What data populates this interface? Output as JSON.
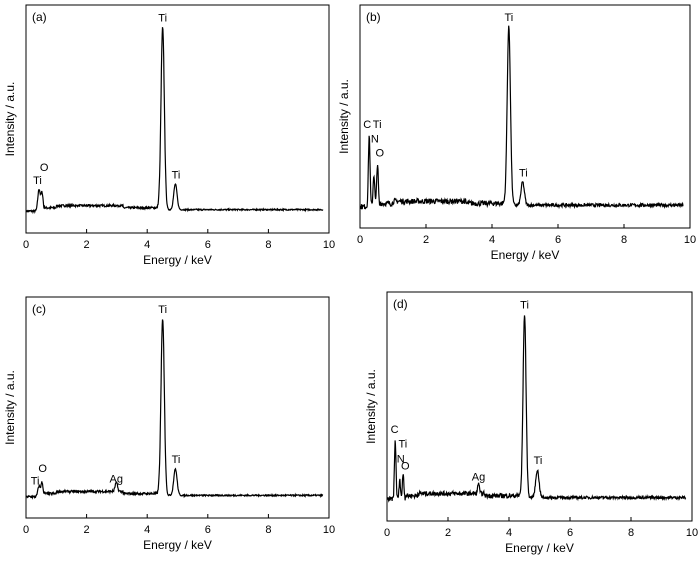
{
  "chart_data": [
    {
      "type": "line",
      "tag": "(a)",
      "xlabel": "Energy / keV",
      "ylabel": "Intensity / a.u.",
      "xlim": [
        0,
        10
      ],
      "ylim": [
        -12,
        113
      ],
      "xticks": [
        0,
        2,
        4,
        6,
        8,
        10
      ],
      "noise": 1.2,
      "peaks": [
        {
          "e": 0.43,
          "h": 12,
          "w": 0.04
        },
        {
          "e": 0.53,
          "h": 10,
          "w": 0.035
        },
        {
          "e": 4.51,
          "h": 100,
          "w": 0.055
        },
        {
          "e": 4.93,
          "h": 14,
          "w": 0.055
        }
      ],
      "labels": [
        {
          "text": "Ti",
          "e": 0.38,
          "i": 15
        },
        {
          "text": "O",
          "e": 0.6,
          "i": 22
        },
        {
          "text": "Ti",
          "e": 4.51,
          "i": 104
        },
        {
          "text": "Ti",
          "e": 4.95,
          "i": 18
        }
      ]
    },
    {
      "type": "line",
      "tag": "(b)",
      "xlabel": "Energy / keV",
      "ylabel": "Intensity / a.u.",
      "xlim": [
        0,
        10
      ],
      "ylim": [
        -12,
        113
      ],
      "xticks": [
        0,
        2,
        4,
        6,
        8,
        10
      ],
      "noise": 3,
      "peaks": [
        {
          "e": 0.28,
          "h": 40,
          "w": 0.025
        },
        {
          "e": 0.42,
          "h": 18,
          "w": 0.025
        },
        {
          "e": 0.53,
          "h": 24,
          "w": 0.025
        },
        {
          "e": 4.51,
          "h": 100,
          "w": 0.05
        },
        {
          "e": 4.93,
          "h": 13,
          "w": 0.05
        }
      ],
      "labels": [
        {
          "text": "C",
          "e": 0.22,
          "i": 44
        },
        {
          "text": "Ti",
          "e": 0.52,
          "i": 44
        },
        {
          "text": "N",
          "e": 0.45,
          "i": 36
        },
        {
          "text": "O",
          "e": 0.6,
          "i": 28
        },
        {
          "text": "Ti",
          "e": 4.51,
          "i": 104
        },
        {
          "text": "Ti",
          "e": 4.95,
          "i": 17
        }
      ]
    },
    {
      "type": "line",
      "tag": "(c)",
      "xlabel": "Energy / keV",
      "ylabel": "Intensity / a.u.",
      "xlim": [
        0,
        10
      ],
      "ylim": [
        -12,
        113
      ],
      "xticks": [
        0,
        2,
        4,
        6,
        8,
        10
      ],
      "noise": 1.3,
      "peaks": [
        {
          "e": 0.43,
          "h": 6,
          "w": 0.04
        },
        {
          "e": 0.53,
          "h": 8,
          "w": 0.035
        },
        {
          "e": 2.98,
          "h": 5,
          "w": 0.04
        },
        {
          "e": 4.51,
          "h": 100,
          "w": 0.055
        },
        {
          "e": 4.93,
          "h": 15,
          "w": 0.055
        }
      ],
      "labels": [
        {
          "text": "Ti",
          "e": 0.3,
          "i": 7
        },
        {
          "text": "O",
          "e": 0.55,
          "i": 14
        },
        {
          "text": "Ag",
          "e": 2.98,
          "i": 8
        },
        {
          "text": "Ti",
          "e": 4.51,
          "i": 104
        },
        {
          "text": "Ti",
          "e": 4.95,
          "i": 19
        }
      ]
    },
    {
      "type": "line",
      "tag": "(d)",
      "xlabel": "Energy / keV",
      "ylabel": "Intensity / a.u.",
      "xlim": [
        0,
        10
      ],
      "ylim": [
        -12,
        113
      ],
      "xticks": [
        0,
        2,
        4,
        6,
        8,
        10
      ],
      "noise": 2.5,
      "peaks": [
        {
          "e": 0.27,
          "h": 32,
          "w": 0.025
        },
        {
          "e": 0.42,
          "h": 10,
          "w": 0.025
        },
        {
          "e": 0.53,
          "h": 14,
          "w": 0.025
        },
        {
          "e": 3.0,
          "h": 6,
          "w": 0.025
        },
        {
          "e": 4.51,
          "h": 100,
          "w": 0.05
        },
        {
          "e": 4.93,
          "h": 15,
          "w": 0.055
        }
      ],
      "labels": [
        {
          "text": "C",
          "e": 0.25,
          "i": 36
        },
        {
          "text": "Ti",
          "e": 0.52,
          "i": 28
        },
        {
          "text": "N",
          "e": 0.45,
          "i": 20
        },
        {
          "text": "O",
          "e": 0.6,
          "i": 16
        },
        {
          "text": "Ag",
          "e": 3.0,
          "i": 10
        },
        {
          "text": "Ti",
          "e": 4.51,
          "i": 104
        },
        {
          "text": "Ti",
          "e": 4.95,
          "i": 19
        }
      ]
    }
  ]
}
